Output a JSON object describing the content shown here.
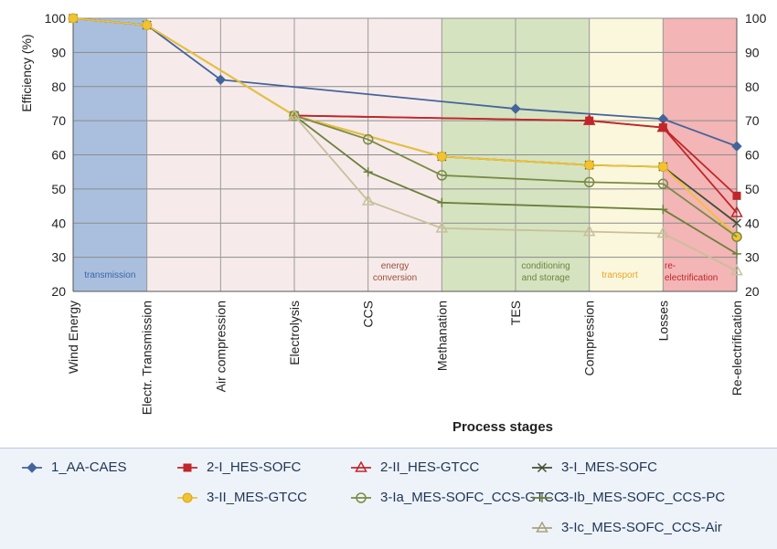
{
  "chart_data": {
    "type": "line",
    "xlabel": "Process stages",
    "ylabel": "Efficiency  (%)",
    "ylim": [
      20,
      100
    ],
    "yticks": [
      20,
      30,
      40,
      50,
      60,
      70,
      80,
      90,
      100
    ],
    "secondary_y_axis": true,
    "grid": "horizontal",
    "legend_position": "bottom",
    "categories": [
      "Wind Energy",
      "Electr. Transmission",
      "Air compression",
      "Electrolysis",
      "CCS",
      "Methanation",
      "TES",
      "Compression",
      "Losses",
      "Re-electrification"
    ],
    "bands": [
      {
        "label": "transmission",
        "from": 0,
        "to": 1,
        "color": "#a9bfdd",
        "text_color": "#3b66a8"
      },
      {
        "label": "energy conversion",
        "from": 1,
        "to": 5,
        "color": "#f6ebea",
        "text_color": "#9d4d3b"
      },
      {
        "label": "conditioning and storage",
        "from": 5,
        "to": 7,
        "color": "#d6e3c0",
        "text_color": "#6d8440"
      },
      {
        "label": "transport",
        "from": 7,
        "to": 8,
        "color": "#fbf7dc",
        "text_color": "#e3a72a"
      },
      {
        "label": "re-electrification",
        "from": 8,
        "to": 9,
        "color": "#f3b5b5",
        "text_color": "#c0262a"
      }
    ],
    "series": [
      {
        "name": "1_AA-CAES",
        "color": "#44649c",
        "marker": "diamond",
        "points": [
          [
            0,
            100
          ],
          [
            1,
            98
          ],
          [
            2,
            82
          ],
          [
            6,
            73.5
          ],
          [
            8,
            70.5
          ],
          [
            9,
            62.5
          ]
        ]
      },
      {
        "name": "2-I_HES-SOFC",
        "color": "#c0262a",
        "marker": "square",
        "points": [
          [
            3,
            71.5
          ],
          [
            7,
            70
          ],
          [
            8,
            68
          ],
          [
            9,
            48
          ]
        ]
      },
      {
        "name": "2-II_HES-GTCC",
        "color": "#c0262a",
        "marker": "triangle-open",
        "points": [
          [
            3,
            71.5
          ],
          [
            7,
            70
          ],
          [
            8,
            68
          ],
          [
            9,
            43
          ]
        ]
      },
      {
        "name": "3-I_MES-SOFC",
        "color": "#3f4f32",
        "marker": "x",
        "points": [
          [
            0,
            100
          ],
          [
            1,
            98
          ],
          [
            3,
            71.5
          ],
          [
            5,
            59.5
          ],
          [
            7,
            57
          ],
          [
            8,
            56.5
          ],
          [
            9,
            40
          ]
        ]
      },
      {
        "name": "3-II_MES-GTCC",
        "color": "#f1c232",
        "marker": "circle",
        "points": [
          [
            0,
            100
          ],
          [
            1,
            98
          ],
          [
            3,
            71.5
          ],
          [
            5,
            59.5
          ],
          [
            7,
            57
          ],
          [
            8,
            56.5
          ],
          [
            9,
            36
          ]
        ]
      },
      {
        "name": "3-Ia_MES-SOFC_CCS-GTCC",
        "color": "#7a8a46",
        "marker": "circle-open",
        "points": [
          [
            3,
            71.5
          ],
          [
            4,
            64.5
          ],
          [
            5,
            54
          ],
          [
            7,
            52
          ],
          [
            8,
            51.5
          ],
          [
            9,
            36
          ]
        ]
      },
      {
        "name": "3-Ib_MES-SOFC_CCS-PC",
        "color": "#6b7f3c",
        "marker": "plus",
        "points": [
          [
            3,
            71.5
          ],
          [
            4,
            55
          ],
          [
            5,
            46
          ],
          [
            8,
            44
          ],
          [
            9,
            31
          ]
        ]
      },
      {
        "name": "3-Ic_MES-SOFC_CCS-Air",
        "color": "#c7c09a",
        "marker": "triangle-open",
        "points": [
          [
            3,
            71.5
          ],
          [
            4,
            46.5
          ],
          [
            5,
            38.5
          ],
          [
            7,
            37.5
          ],
          [
            8,
            37
          ],
          [
            9,
            26
          ]
        ]
      }
    ]
  },
  "legend": [
    {
      "label": "1_AA-CAES",
      "marker": "diamond",
      "color": "#44649c"
    },
    {
      "label": "2-I_HES-SOFC",
      "marker": "square",
      "color": "#c0262a"
    },
    {
      "label": "2-II_HES-GTCC",
      "marker": "triangle-open",
      "color": "#c0262a"
    },
    {
      "label": "3-I_MES-SOFC",
      "marker": "x",
      "color": "#3f4f32"
    },
    {
      "label": "3-II_MES-GTCC",
      "marker": "circle",
      "color": "#f1c232"
    },
    {
      "label": "3-Ia_MES-SOFC_CCS-GTCC",
      "marker": "circle-open",
      "color": "#7a8a46"
    },
    {
      "label": "3-Ib_MES-SOFC_CCS-PC",
      "marker": "plus",
      "color": "#6b7f3c"
    },
    {
      "label": "3-Ic_MES-SOFC_CCS-Air",
      "marker": "triangle-open",
      "color": "#a8a27e"
    }
  ]
}
